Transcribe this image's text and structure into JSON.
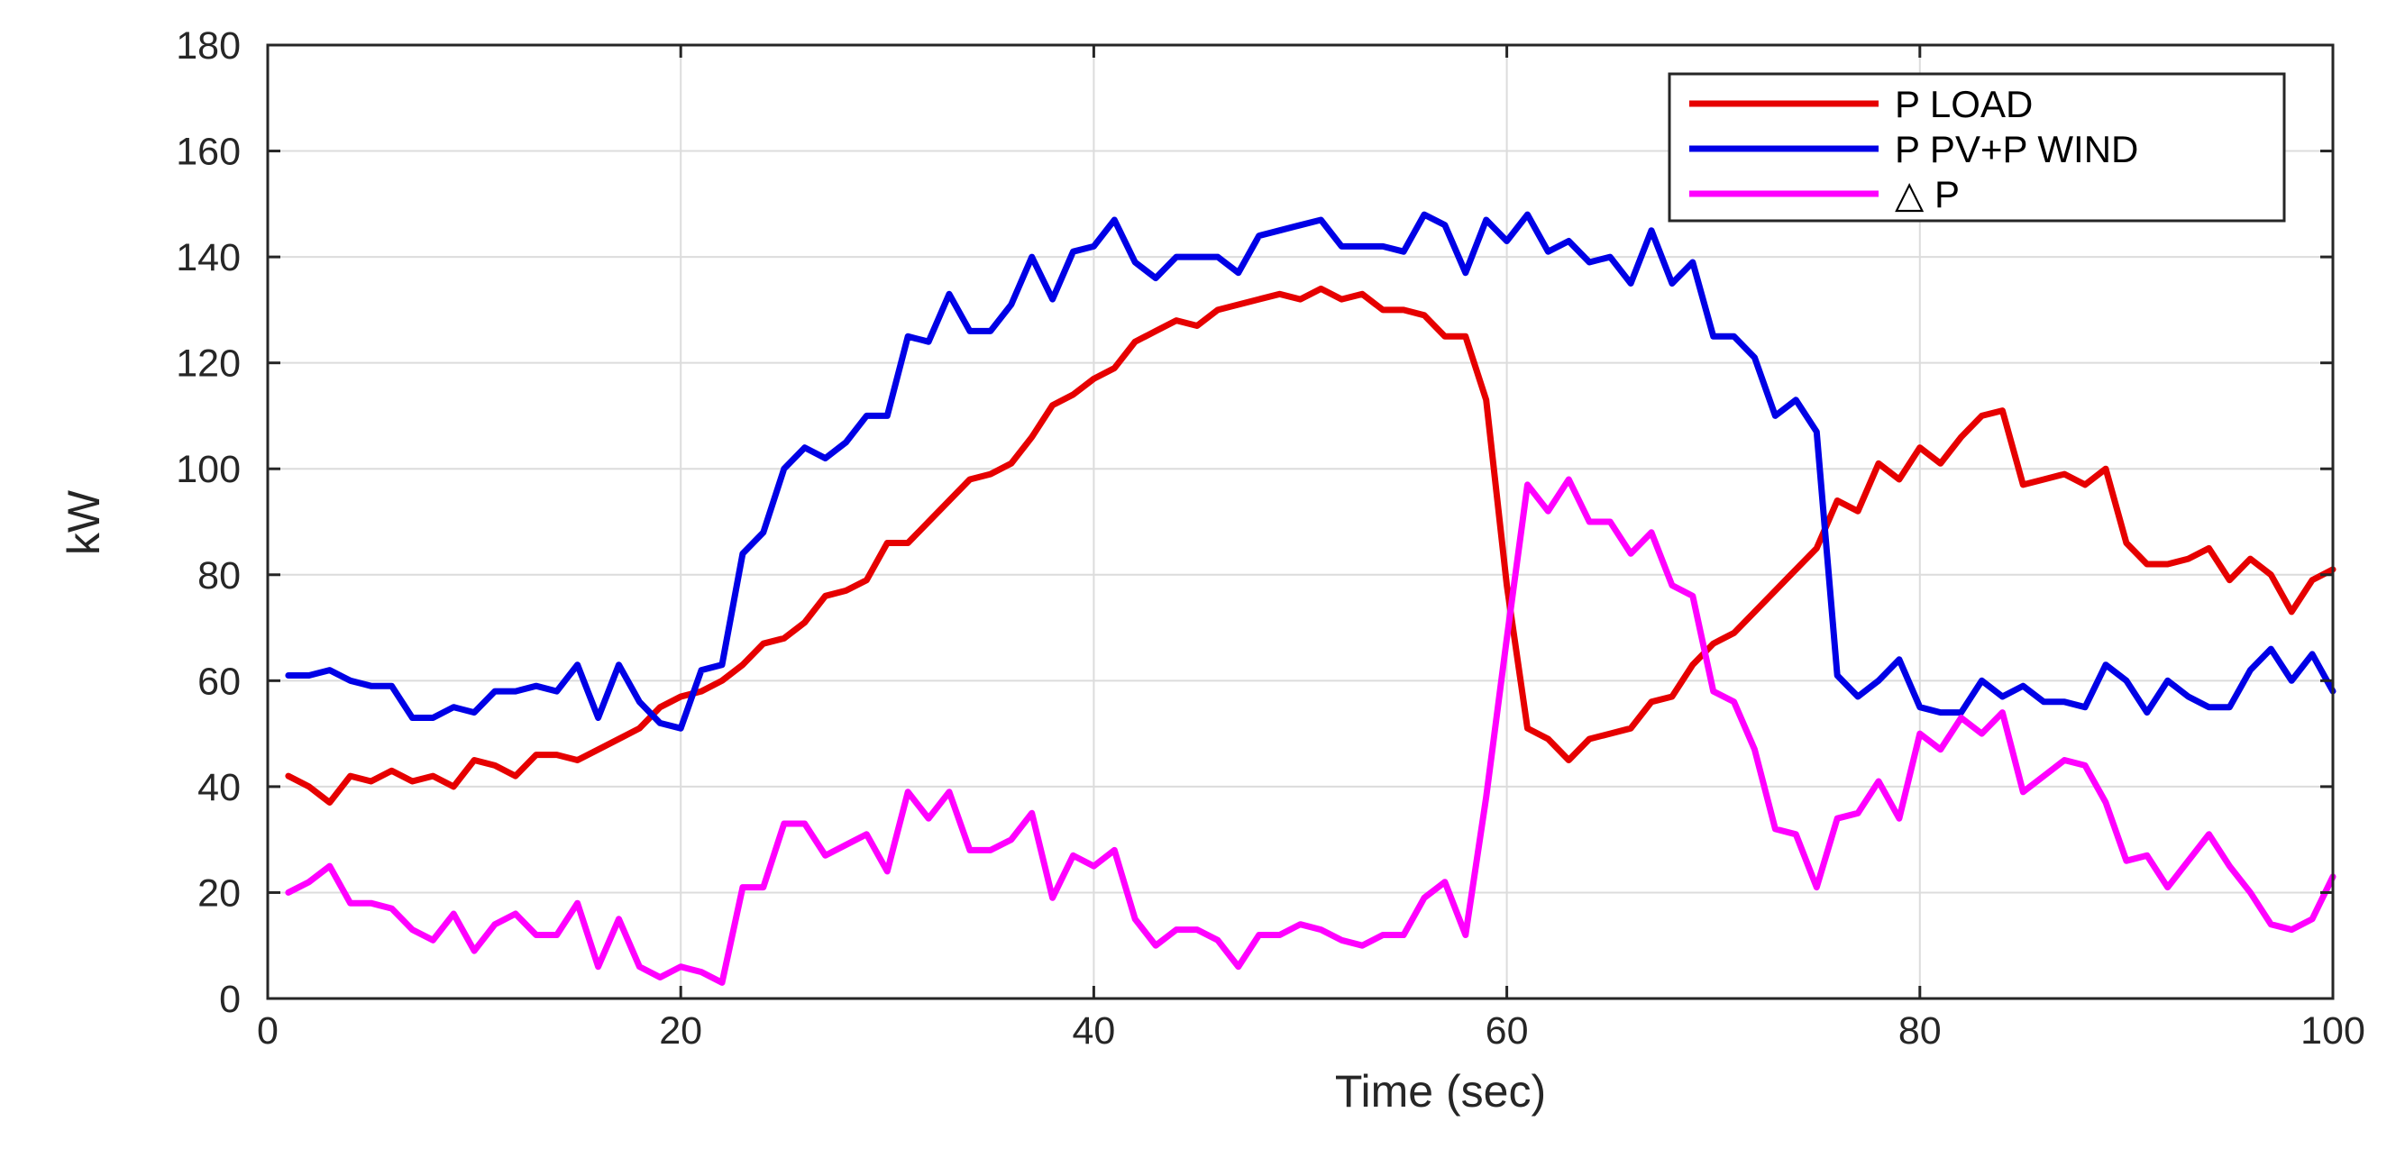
{
  "chart_data": {
    "type": "line",
    "xlabel": "Time (sec)",
    "ylabel": "kW",
    "xlim": [
      0,
      100
    ],
    "ylim": [
      0,
      180
    ],
    "xticks": [
      0,
      20,
      40,
      60,
      80,
      100
    ],
    "yticks": [
      0,
      20,
      40,
      60,
      80,
      100,
      120,
      140,
      160,
      180
    ],
    "grid": true,
    "legend_position": "top-right",
    "x": [
      1,
      2,
      3,
      4,
      5,
      6,
      7,
      8,
      9,
      10,
      11,
      12,
      13,
      14,
      15,
      16,
      17,
      18,
      19,
      20,
      21,
      22,
      23,
      24,
      25,
      26,
      27,
      28,
      29,
      30,
      31,
      32,
      33,
      34,
      35,
      36,
      37,
      38,
      39,
      40,
      41,
      42,
      43,
      44,
      45,
      46,
      47,
      48,
      49,
      50,
      51,
      52,
      53,
      54,
      55,
      56,
      57,
      58,
      59,
      60,
      61,
      62,
      63,
      64,
      65,
      66,
      67,
      68,
      69,
      70,
      71,
      72,
      73,
      74,
      75,
      76,
      77,
      78,
      79,
      80,
      81,
      82,
      83,
      84,
      85,
      86,
      87,
      88,
      89,
      90,
      91,
      92,
      93,
      94,
      95,
      96,
      97,
      98,
      99,
      100
    ],
    "series": [
      {
        "name": "P LOAD",
        "color": "#e60000",
        "values": [
          42,
          40,
          37,
          42,
          41,
          43,
          41,
          42,
          40,
          45,
          44,
          42,
          46,
          46,
          45,
          47,
          49,
          51,
          55,
          57,
          58,
          60,
          63,
          67,
          68,
          71,
          76,
          77,
          79,
          86,
          86,
          90,
          94,
          98,
          99,
          101,
          106,
          112,
          114,
          117,
          119,
          124,
          126,
          128,
          127,
          130,
          131,
          132,
          133,
          132,
          134,
          132,
          133,
          130,
          130,
          129,
          125,
          125,
          113,
          78,
          51,
          49,
          45,
          49,
          50,
          51,
          56,
          57,
          63,
          67,
          69,
          73,
          77,
          81,
          85,
          94,
          92,
          101,
          98,
          104,
          101,
          106,
          110,
          111,
          97,
          98,
          99,
          97,
          100,
          86,
          82,
          82,
          83,
          85,
          79,
          83,
          80,
          73,
          79,
          81
        ]
      },
      {
        "name": "P PV+P WIND",
        "color": "#0000e6",
        "values": [
          61,
          61,
          62,
          60,
          59,
          59,
          53,
          53,
          55,
          54,
          58,
          58,
          59,
          58,
          63,
          53,
          63,
          56,
          52,
          51,
          62,
          63,
          84,
          88,
          100,
          104,
          102,
          105,
          110,
          110,
          125,
          124,
          133,
          126,
          126,
          131,
          140,
          132,
          141,
          142,
          147,
          139,
          136,
          140,
          140,
          140,
          137,
          144,
          145,
          146,
          147,
          142,
          142,
          142,
          141,
          148,
          146,
          137,
          147,
          143,
          148,
          141,
          143,
          139,
          140,
          135,
          145,
          135,
          139,
          125,
          125,
          121,
          110,
          113,
          107,
          61,
          57,
          60,
          64,
          55,
          54,
          54,
          60,
          57,
          59,
          56,
          56,
          55,
          63,
          60,
          54,
          60,
          57,
          55,
          55,
          62,
          66,
          60,
          65,
          58
        ]
      },
      {
        "name": "△ P",
        "color": "#ff00ff",
        "values": [
          20,
          22,
          25,
          18,
          18,
          17,
          13,
          11,
          16,
          9,
          14,
          16,
          12,
          12,
          18,
          6,
          15,
          6,
          4,
          6,
          5,
          3,
          21,
          21,
          33,
          33,
          27,
          29,
          31,
          24,
          39,
          34,
          39,
          28,
          28,
          30,
          35,
          19,
          27,
          25,
          28,
          15,
          10,
          13,
          13,
          11,
          6,
          12,
          12,
          14,
          13,
          11,
          10,
          12,
          12,
          19,
          22,
          12,
          38,
          68,
          97,
          92,
          98,
          90,
          90,
          84,
          88,
          78,
          76,
          58,
          56,
          47,
          32,
          31,
          21,
          34,
          35,
          41,
          34,
          50,
          47,
          53,
          50,
          54,
          39,
          42,
          45,
          44,
          37,
          26,
          27,
          21,
          26,
          31,
          25,
          20,
          14,
          13,
          15,
          23
        ]
      }
    ]
  }
}
